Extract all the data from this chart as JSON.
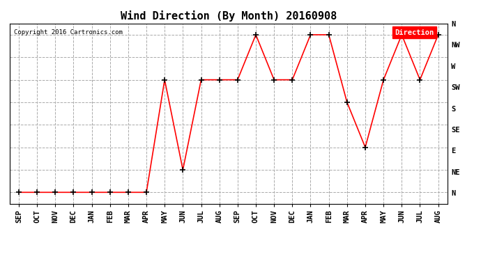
{
  "title": "Wind Direction (By Month) 20160908",
  "copyright_text": "Copyright 2016 Cartronics.com",
  "legend_label": "Direction",
  "legend_bg": "#ff0000",
  "legend_text_color": "#ffffff",
  "x_labels": [
    "SEP",
    "OCT",
    "NOV",
    "DEC",
    "JAN",
    "FEB",
    "MAR",
    "APR",
    "MAY",
    "JUN",
    "JUL",
    "AUG",
    "SEP",
    "OCT",
    "NOV",
    "DEC",
    "JAN",
    "FEB",
    "MAR",
    "APR",
    "MAY",
    "JUN",
    "JUL",
    "AUG"
  ],
  "y_labels": [
    "N",
    "NE",
    "E",
    "SE",
    "S",
    "SW",
    "W",
    "NW",
    "N"
  ],
  "direction_data": [
    0,
    0,
    0,
    0,
    0,
    0,
    0,
    0,
    5,
    1,
    5,
    5,
    5,
    7,
    5,
    5,
    7,
    7,
    4,
    2,
    5,
    7,
    5,
    7
  ],
  "line_color": "#ff0000",
  "marker": "+",
  "marker_color": "#000000",
  "marker_size": 6,
  "line_width": 1.2,
  "bg_color": "#ffffff",
  "grid_color": "#aaaaaa",
  "grid_style": "--",
  "title_fontsize": 11,
  "tick_fontsize": 7.5
}
